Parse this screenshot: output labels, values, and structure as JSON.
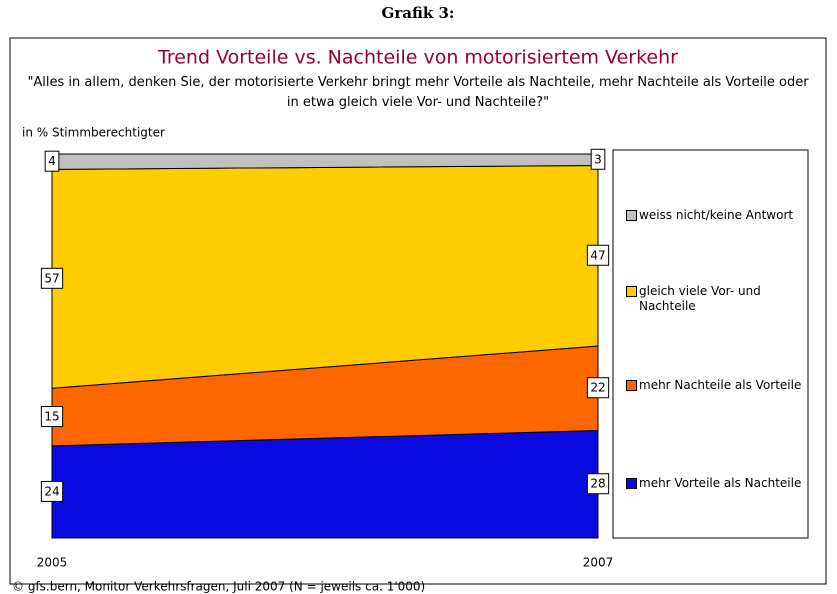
{
  "header": "Grafik 3:",
  "chart_data": {
    "type": "stacked_area",
    "title": "Trend Vorteile vs. Nachteile von motorisiertem Verkehr",
    "subtitle": "\"Alles in allem, denken Sie, der motorisierte Verkehr bringt mehr Vorteile als Nachteile, mehr Nachteile als Vorteile oder in etwa gleich viele Vor- und Nachteile?\"",
    "y_label": "in % Stimmberechtigter",
    "categories": [
      "2005",
      "2007"
    ],
    "ylim": [
      0,
      100
    ],
    "series": [
      {
        "name": "mehr Vorteile als Nachteile",
        "color": "#0a0adf",
        "values": [
          24,
          28
        ]
      },
      {
        "name": "mehr Nachteile als Vorteile",
        "color": "#ff6600",
        "values": [
          15,
          22
        ]
      },
      {
        "name": "gleich viele Vor- und Nachteile",
        "color": "#ffcc00",
        "values": [
          57,
          47
        ]
      },
      {
        "name": "weiss nicht/keine Antwort",
        "color": "#c0c0c0",
        "values": [
          4,
          3
        ]
      }
    ],
    "legend": "right",
    "source": "© gfs.bern, Monitor Verkehrsfragen, Juli 2007 (N = jeweils ca. 1'000)"
  }
}
